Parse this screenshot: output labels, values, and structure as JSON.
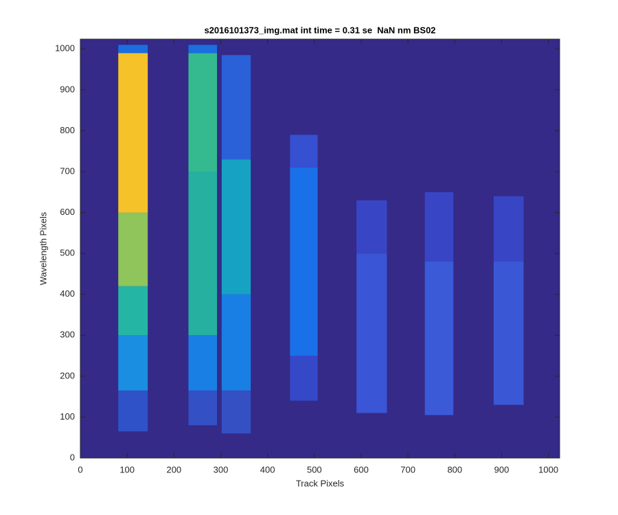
{
  "chart_data": {
    "type": "heatmap",
    "title": "s2016101373_img.mat int time = 0.31 se  NaN nm BS02",
    "x_label": "Track Pixels",
    "y_label": "Wavelength Pixels",
    "xlim": [
      0,
      1024
    ],
    "ylim": [
      0,
      1024
    ],
    "xticks": [
      0,
      100,
      200,
      300,
      400,
      500,
      600,
      700,
      800,
      900,
      1000
    ],
    "yticks": [
      0,
      100,
      200,
      300,
      400,
      500,
      600,
      700,
      800,
      900,
      1000
    ],
    "background": "#352a87",
    "cells": [
      {
        "x": [
          81,
          144
        ],
        "y": [
          65,
          165
        ],
        "color": "#2f52c9"
      },
      {
        "x": [
          81,
          144
        ],
        "y": [
          165,
          300
        ],
        "color": "#1a8ee0"
      },
      {
        "x": [
          81,
          144
        ],
        "y": [
          300,
          420
        ],
        "color": "#25b5a5"
      },
      {
        "x": [
          81,
          144
        ],
        "y": [
          420,
          600
        ],
        "color": "#8fc55a"
      },
      {
        "x": [
          81,
          144
        ],
        "y": [
          600,
          990
        ],
        "color": "#f5c22a"
      },
      {
        "x": [
          81,
          144
        ],
        "y": [
          990,
          1010
        ],
        "color": "#1a6ee0"
      },
      {
        "x": [
          231,
          292
        ],
        "y": [
          80,
          165
        ],
        "color": "#3350c5"
      },
      {
        "x": [
          231,
          292
        ],
        "y": [
          165,
          300
        ],
        "color": "#1a7fe5"
      },
      {
        "x": [
          231,
          292
        ],
        "y": [
          300,
          700
        ],
        "color": "#25b0a0"
      },
      {
        "x": [
          231,
          292
        ],
        "y": [
          700,
          990
        ],
        "color": "#35b98f"
      },
      {
        "x": [
          231,
          292
        ],
        "y": [
          990,
          1010
        ],
        "color": "#1a6ee0"
      },
      {
        "x": [
          302,
          364
        ],
        "y": [
          60,
          165
        ],
        "color": "#3450c3"
      },
      {
        "x": [
          302,
          364
        ],
        "y": [
          165,
          400
        ],
        "color": "#1a7fe5"
      },
      {
        "x": [
          302,
          364
        ],
        "y": [
          400,
          730
        ],
        "color": "#16a3c3"
      },
      {
        "x": [
          302,
          364
        ],
        "y": [
          730,
          985
        ],
        "color": "#2a60d8"
      },
      {
        "x": [
          448,
          507
        ],
        "y": [
          140,
          250
        ],
        "color": "#3548c8"
      },
      {
        "x": [
          448,
          507
        ],
        "y": [
          250,
          710
        ],
        "color": "#1a70e8"
      },
      {
        "x": [
          448,
          507
        ],
        "y": [
          710,
          790
        ],
        "color": "#3550d0"
      },
      {
        "x": [
          590,
          655
        ],
        "y": [
          110,
          500
        ],
        "color": "#3a55d5"
      },
      {
        "x": [
          590,
          655
        ],
        "y": [
          500,
          630
        ],
        "color": "#3846c5"
      },
      {
        "x": [
          736,
          797
        ],
        "y": [
          105,
          480
        ],
        "color": "#3b5ad8"
      },
      {
        "x": [
          736,
          797
        ],
        "y": [
          480,
          650
        ],
        "color": "#3846c5"
      },
      {
        "x": [
          883,
          947
        ],
        "y": [
          130,
          480
        ],
        "color": "#3a58d6"
      },
      {
        "x": [
          883,
          947
        ],
        "y": [
          480,
          640
        ],
        "color": "#3846c5"
      }
    ]
  }
}
